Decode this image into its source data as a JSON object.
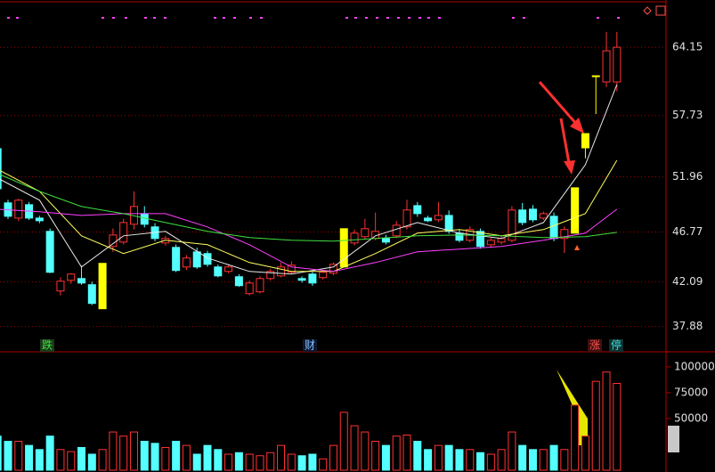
{
  "chart_data": [
    {
      "type": "candlestick",
      "open": [
        54.61,
        49.51,
        48.08,
        49.34,
        48.08,
        46.83,
        41.22,
        42.23,
        42.39,
        41.81,
        39.55,
        45.41,
        45.82,
        47.5,
        48.5,
        47.25,
        45.74,
        45.32,
        43.48,
        44.9,
        44.74,
        43.48,
        43.06,
        42.56,
        40.97,
        41.14,
        42.39,
        42.64,
        42.98,
        42.39,
        42.81,
        42.48,
        42.89,
        43.48,
        45.74,
        46.33,
        46.16,
        46.16,
        46.41,
        47.25,
        49.25,
        48.08,
        47.92,
        48.33,
        46.66,
        45.99,
        46.83,
        45.57,
        45.82,
        45.99,
        48.84,
        48.92,
        48.08,
        48.25,
        46.16,
        46.66,
        54.69,
        61.47,
        60.89,
        60.89
      ],
      "high": [
        55.0,
        49.8,
        49.9,
        49.6,
        48.3,
        47.1,
        42.5,
        42.9,
        43.6,
        42.1,
        43.82,
        47.1,
        48.0,
        50.6,
        49.2,
        47.6,
        46.4,
        45.6,
        44.6,
        45.3,
        45.0,
        43.7,
        43.7,
        42.8,
        42.2,
        42.6,
        43.3,
        43.9,
        44.0,
        42.6,
        43.0,
        43.1,
        43.9,
        47.08,
        47.0,
        48.0,
        48.6,
        46.5,
        47.8,
        49.8,
        49.6,
        48.3,
        49.6,
        48.8,
        47.0,
        47.3,
        47.1,
        46.2,
        46.4,
        49.2,
        49.5,
        49.3,
        48.7,
        48.6,
        47.3,
        50.93,
        56.03,
        61.47,
        65.6,
        65.6
      ],
      "low": [
        50.6,
        48.0,
        47.8,
        47.9,
        47.6,
        42.9,
        40.8,
        41.9,
        41.8,
        39.9,
        39.55,
        44.9,
        45.6,
        47.0,
        47.2,
        45.9,
        45.5,
        43.0,
        43.2,
        43.3,
        43.5,
        42.5,
        42.9,
        41.6,
        40.8,
        41.0,
        42.2,
        42.5,
        42.8,
        42.0,
        41.7,
        42.3,
        42.7,
        43.48,
        45.5,
        46.1,
        46.0,
        45.6,
        46.2,
        47.0,
        48.2,
        47.7,
        47.7,
        46.6,
        45.8,
        45.8,
        45.2,
        45.3,
        45.6,
        45.8,
        47.4,
        47.7,
        47.9,
        45.9,
        44.8,
        46.66,
        53.7,
        57.87,
        60.4,
        60.0
      ],
      "close": [
        50.84,
        48.25,
        49.76,
        48.08,
        47.83,
        42.98,
        42.14,
        42.81,
        41.97,
        40.05,
        43.82,
        46.49,
        47.66,
        49.17,
        47.5,
        46.16,
        46.16,
        43.15,
        44.32,
        43.48,
        43.73,
        42.64,
        43.48,
        41.72,
        41.97,
        42.39,
        43.06,
        43.48,
        43.65,
        42.23,
        41.97,
        42.98,
        43.73,
        47.08,
        46.66,
        47.08,
        46.83,
        45.82,
        47.41,
        48.84,
        48.5,
        47.83,
        48.33,
        46.83,
        45.99,
        47.0,
        45.41,
        45.99,
        46.16,
        48.84,
        47.66,
        47.92,
        48.5,
        46.16,
        47.0,
        50.93,
        56.03,
        61.47,
        63.82,
        64.15
      ],
      "up_color": "#ff3232",
      "down_color": "#54ffff",
      "limit_color": "#ffff00",
      "limit_up": [
        10,
        33,
        55,
        56,
        57
      ],
      "ylim": [
        35.5,
        68.6
      ],
      "yticks": [
        37.88,
        42.09,
        46.77,
        51.96,
        57.73,
        64.15
      ],
      "grid": true,
      "lines": {
        "x": [
          0,
          4,
          8,
          12,
          16,
          20,
          24,
          28,
          32,
          36,
          40,
          44,
          48,
          52,
          56,
          59
        ],
        "series": [
          {
            "color": "#e8e8e8",
            "values": [
              51.85,
              49.76,
              43.48,
              46.41,
              46.83,
              44.32,
              43.06,
              42.81,
              43.48,
              46.41,
              47.66,
              46.66,
              46.16,
              47.66,
              53.1,
              60.64
            ]
          },
          {
            "color": "#ffff60",
            "values": [
              52.69,
              50.59,
              46.41,
              44.74,
              45.99,
              45.57,
              43.9,
              43.06,
              43.06,
              44.74,
              46.66,
              47.0,
              46.41,
              47.0,
              48.5,
              53.52
            ]
          },
          {
            "color": "#ff40ff",
            "values": [
              48.92,
              48.67,
              48.33,
              48.5,
              48.5,
              47.25,
              45.57,
              43.48,
              43.06,
              43.9,
              44.9,
              45.16,
              45.41,
              45.99,
              46.66,
              48.92
            ]
          },
          {
            "color": "#40e040",
            "values": [
              52.27,
              50.59,
              49.17,
              48.5,
              47.66,
              46.83,
              46.24,
              45.99,
              45.91,
              46.16,
              46.41,
              46.49,
              46.41,
              46.24,
              46.33,
              46.74
            ]
          }
        ]
      },
      "annotations": [
        "跌",
        "财",
        "涨",
        "停"
      ]
    },
    {
      "type": "bar",
      "values": [
        33000,
        28000,
        28000,
        24000,
        20000,
        33000,
        20000,
        18000,
        22000,
        15500,
        20000,
        37000,
        33000,
        37000,
        28000,
        26000,
        22000,
        28000,
        24000,
        15500,
        24000,
        20000,
        15500,
        17000,
        15500,
        14000,
        17000,
        24000,
        15500,
        14000,
        15500,
        11000,
        24000,
        56000,
        43000,
        37000,
        28000,
        24000,
        33000,
        34000,
        28000,
        20000,
        24000,
        24000,
        20000,
        20000,
        17000,
        15500,
        20000,
        37000,
        24000,
        20000,
        20000,
        24000,
        20000,
        63000,
        33000,
        86000,
        95000,
        84000
      ],
      "ylim": [
        0,
        112000
      ],
      "yticks": [
        50000,
        75000,
        100000
      ]
    }
  ]
}
